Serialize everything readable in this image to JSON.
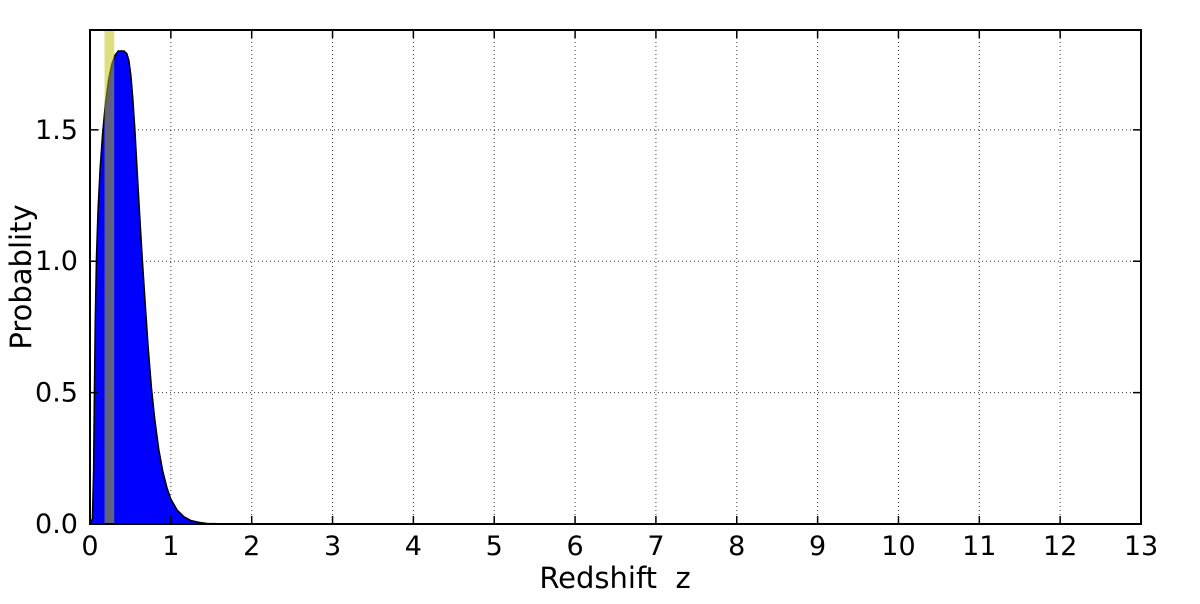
{
  "figure": {
    "background": "#ffffff"
  },
  "chart_data": {
    "type": "area",
    "title": "",
    "xlabel": "Redshift  z",
    "ylabel": "Probablity",
    "xlim": [
      0,
      13
    ],
    "ylim": [
      0,
      1.88
    ],
    "xticks": [
      0,
      1,
      2,
      3,
      4,
      5,
      6,
      7,
      8,
      9,
      10,
      11,
      12,
      13
    ],
    "xtick_labels": [
      "0",
      "1",
      "2",
      "3",
      "4",
      "5",
      "6",
      "7",
      "8",
      "9",
      "10",
      "11",
      "12",
      "13"
    ],
    "yticks": [
      0,
      0.5,
      1.0,
      1.5
    ],
    "ytick_labels": [
      "0.0",
      "0.5",
      "1.0",
      "1.5"
    ],
    "grid": {
      "style": "dotted",
      "color": "#333333",
      "on": true
    },
    "axis_color": "#000000",
    "legend": "none",
    "series": [
      {
        "name": "probability-density-curve",
        "type": "filled-curve",
        "fill_color": "#0000ff",
        "edge_color": "#000000",
        "x": [
          0.0,
          0.03,
          0.045,
          0.055,
          0.065,
          0.08,
          0.1,
          0.125,
          0.155,
          0.19,
          0.23,
          0.27,
          0.31,
          0.35,
          0.42,
          0.455,
          0.48,
          0.505,
          0.53,
          0.555,
          0.58,
          0.61,
          0.645,
          0.68,
          0.72,
          0.76,
          0.8,
          0.85,
          0.9,
          0.95,
          1.0,
          1.08,
          1.16,
          1.25,
          1.35,
          1.45,
          1.6,
          1.8,
          13.0
        ],
        "y": [
          0,
          0.02,
          0.2,
          0.5,
          0.78,
          1.02,
          1.2,
          1.35,
          1.48,
          1.6,
          1.69,
          1.75,
          1.785,
          1.8,
          1.8,
          1.79,
          1.765,
          1.71,
          1.62,
          1.5,
          1.36,
          1.2,
          1.02,
          0.85,
          0.67,
          0.52,
          0.4,
          0.285,
          0.2,
          0.14,
          0.095,
          0.052,
          0.028,
          0.013,
          0.006,
          0.002,
          0.001,
          0.0,
          0.0
        ],
        "peak_value": 1.8,
        "peak_x": 0.4
      }
    ],
    "annotations": [
      {
        "name": "highlight-vspan",
        "type": "vspan",
        "x0": 0.18,
        "x1": 0.3,
        "color": "#bfbf00",
        "alpha": 0.5
      }
    ]
  }
}
